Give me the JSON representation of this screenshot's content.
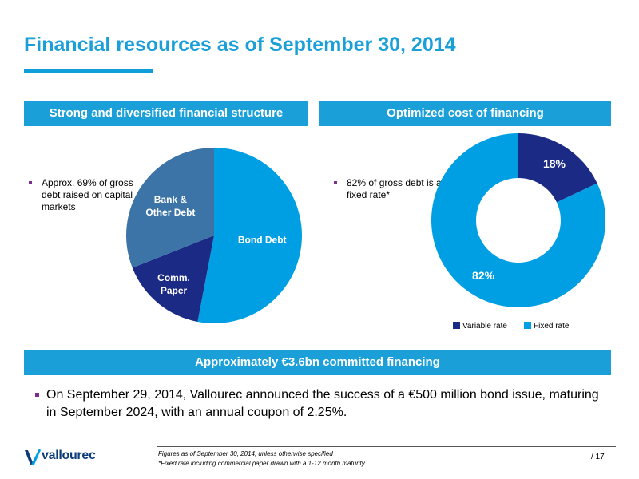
{
  "title": "Financial resources as of September 30, 2014",
  "left_panel": {
    "header": "Strong and diversified financial structure",
    "note": "Approx. 69% of gross debt raised on capital markets"
  },
  "right_panel": {
    "header": "Optimized cost of financing",
    "note": "82% of gross debt is at fixed rate*"
  },
  "chart_data": [
    {
      "type": "pie",
      "categories": [
        "Bond Debt",
        "Comm. Paper",
        "Bank & Other Debt"
      ],
      "values": [
        53,
        16,
        31
      ],
      "colors": [
        "#009fe3",
        "#1b2a85",
        "#3c74a8"
      ],
      "data_labels": [
        "Bond Debt",
        "Comm. Paper",
        "Bank & Other Debt"
      ]
    },
    {
      "type": "pie",
      "style": "donut",
      "categories": [
        "Variable rate",
        "Fixed rate"
      ],
      "values": [
        18,
        82
      ],
      "data_labels": [
        "18%",
        "82%"
      ],
      "colors": [
        "#1b2a85",
        "#009fe3"
      ],
      "legend": "bottom"
    }
  ],
  "legend": {
    "variable": "Variable rate",
    "fixed": "Fixed rate"
  },
  "committed_header": "Approximately €3.6bn committed financing",
  "main_bullet": "On September 29, 2014, Vallourec announced the success of a €500 million bond issue, maturing in September 2024, with an annual coupon of 2.25%.",
  "footnotes": {
    "line1": "Figures as of September 30, 2014, unless otherwise specified",
    "line2": "*Fixed rate including commercial paper drawn with a 1-12 month maturity"
  },
  "page_number": "/ 17",
  "brand": {
    "name": "vallourec",
    "logo_icon": "vallourec-v-logo"
  }
}
